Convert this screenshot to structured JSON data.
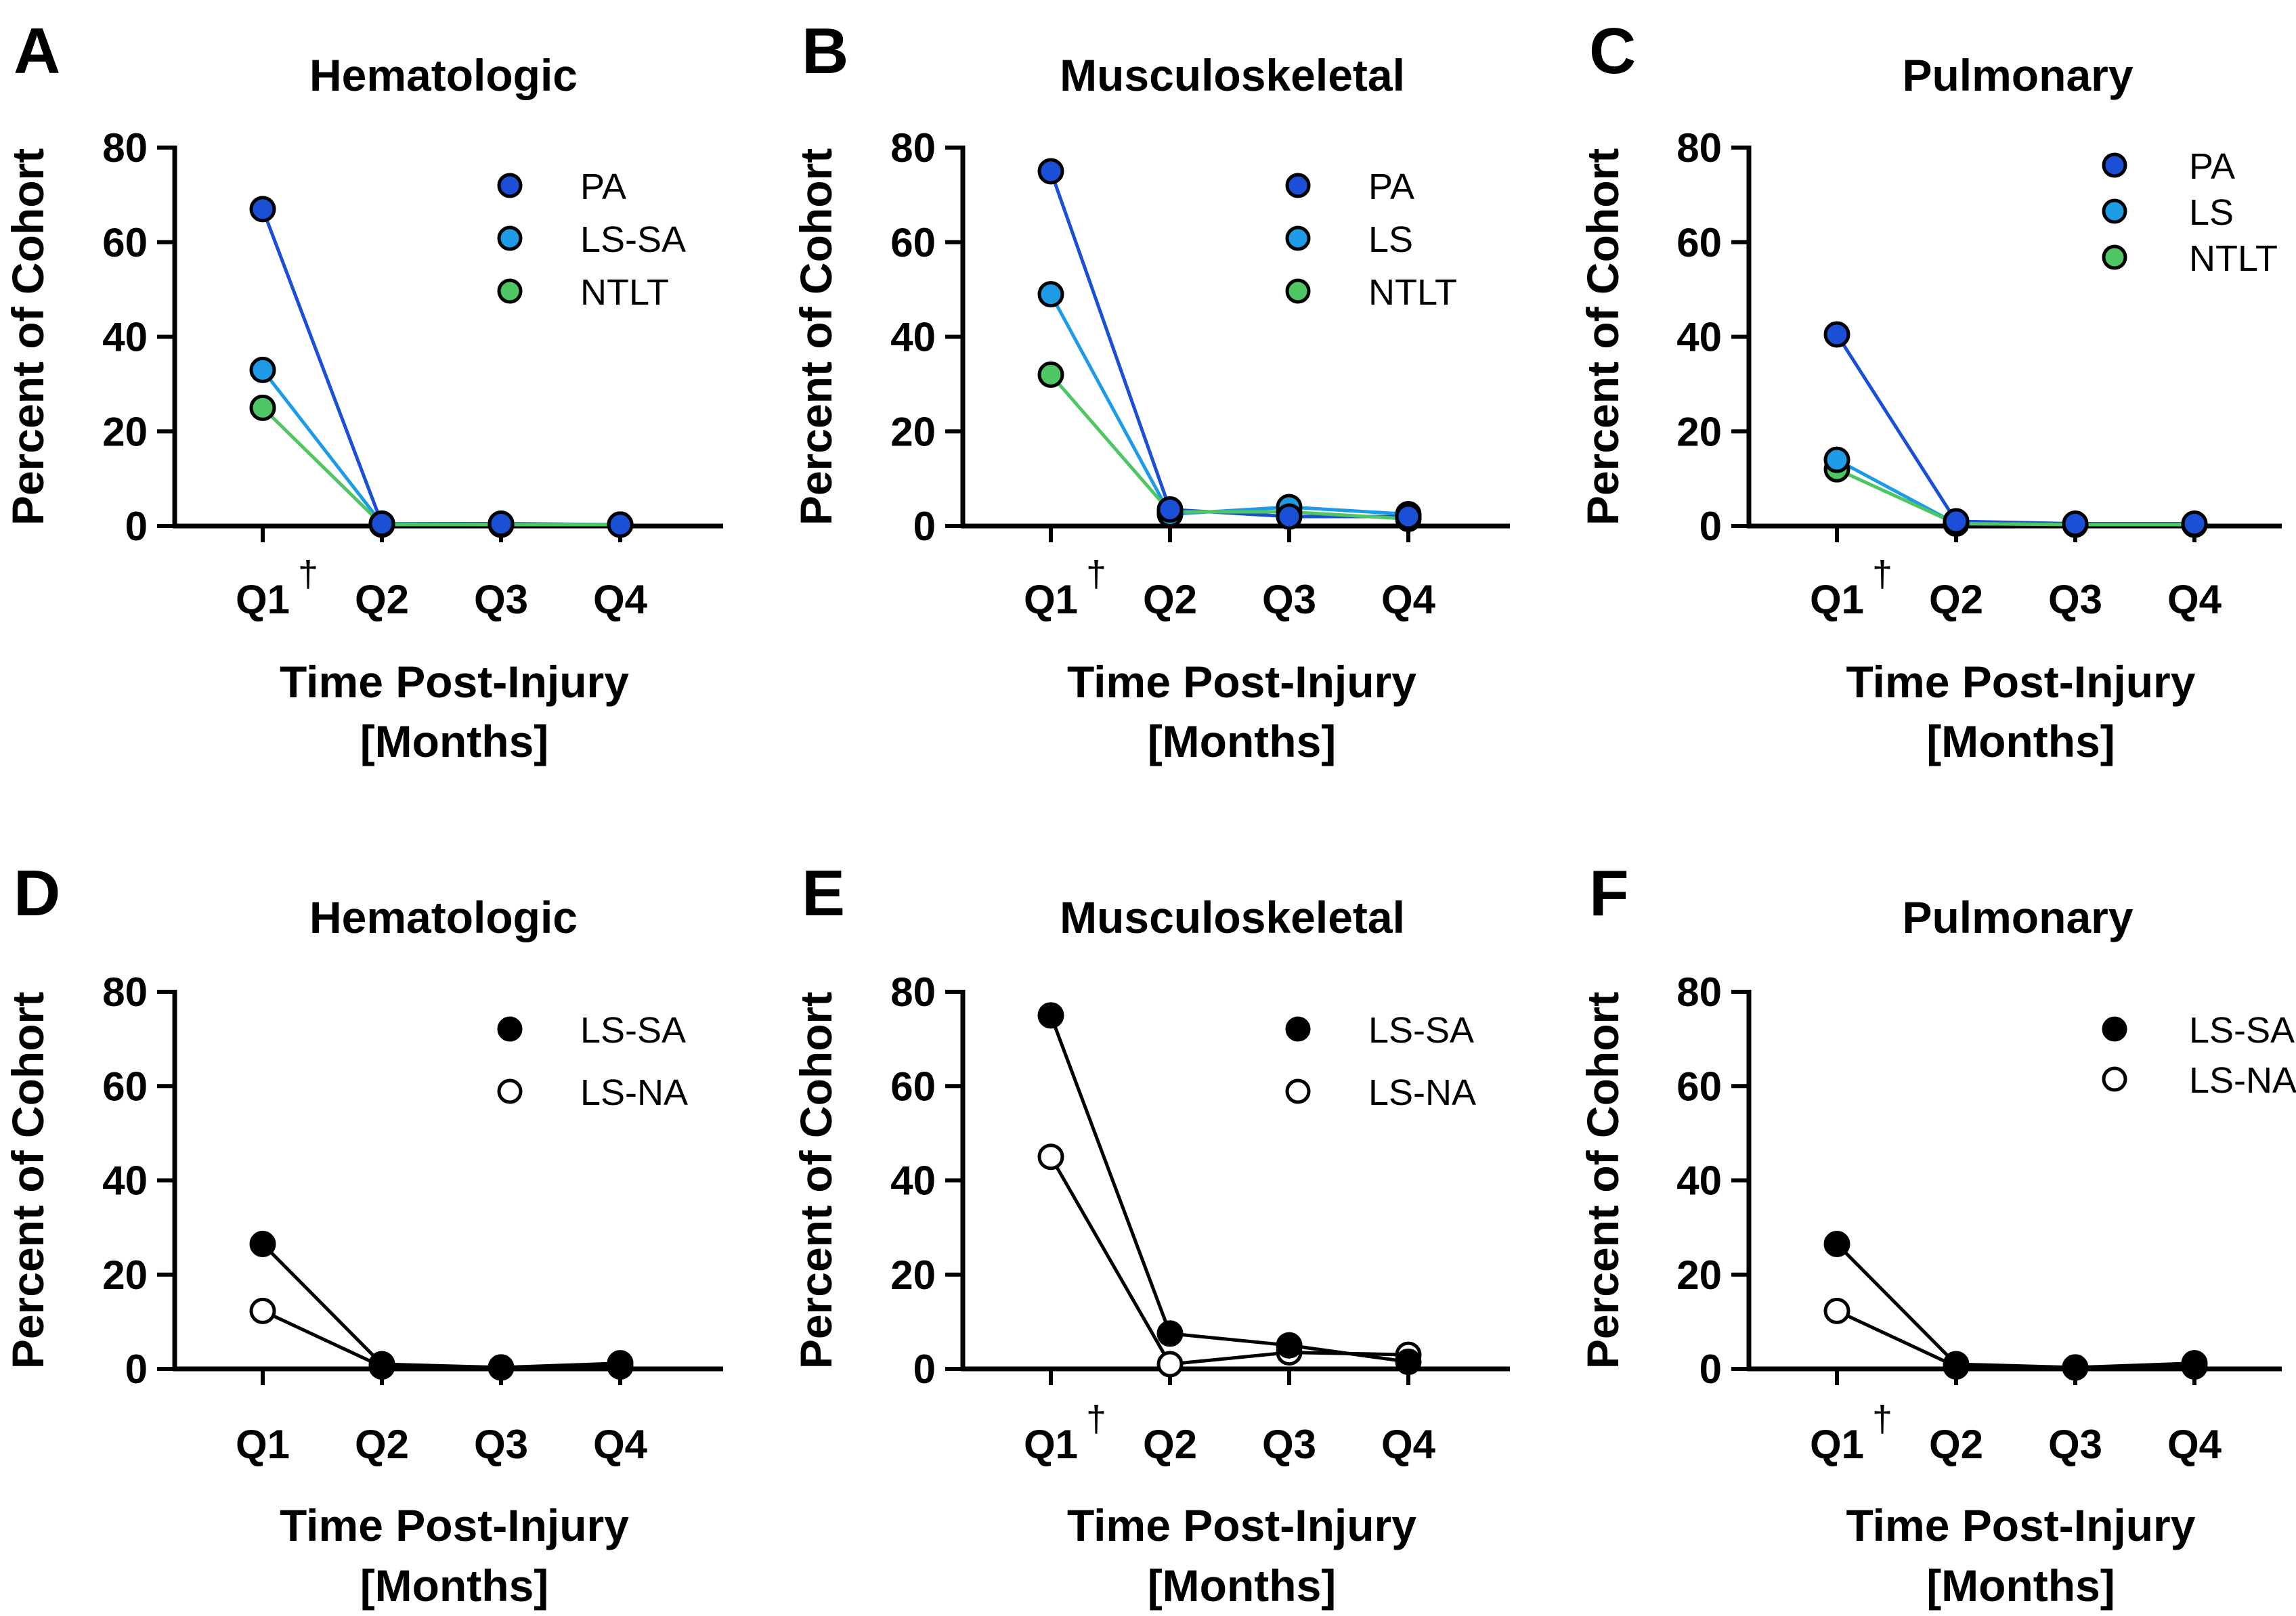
{
  "colors": {
    "PA": "#1a4fd6",
    "LS": "#1e9be6",
    "NTLT": "#4fc664",
    "axis": "#000000",
    "open": "#ffffff"
  },
  "chart_data": [
    {
      "panel": "A",
      "type": "line",
      "title": "Hematologic",
      "ylabel": "Percent of Cohort",
      "xlabel": [
        "Time Post-Injury",
        "[Months]"
      ],
      "categories": [
        "Q1",
        "Q2",
        "Q3",
        "Q4"
      ],
      "dagger": [
        true,
        false,
        false,
        false
      ],
      "ylim": [
        0,
        80
      ],
      "yticks": [
        "0",
        "20",
        "40",
        "60",
        "80"
      ],
      "legend_position": "top-right",
      "series": [
        {
          "name": "PA",
          "color_key": "PA",
          "filled": true,
          "values": [
            67,
            0.5,
            0.5,
            0.3
          ]
        },
        {
          "name": "LS-SA",
          "color_key": "LS",
          "filled": true,
          "values": [
            33,
            0.5,
            0.3,
            0.3
          ]
        },
        {
          "name": "NTLT",
          "color_key": "NTLT",
          "filled": true,
          "values": [
            25,
            0.3,
            0.3,
            0.3
          ]
        }
      ]
    },
    {
      "panel": "B",
      "type": "line",
      "title": "Musculoskeletal",
      "ylabel": "Percent of Cohort",
      "xlabel": [
        "Time Post-Injury",
        "[Months]"
      ],
      "categories": [
        "Q1",
        "Q2",
        "Q3",
        "Q4"
      ],
      "dagger": [
        true,
        false,
        false,
        false
      ],
      "ylim": [
        0,
        80
      ],
      "yticks": [
        "0",
        "20",
        "40",
        "60",
        "80"
      ],
      "legend_position": "top-right",
      "series": [
        {
          "name": "PA",
          "color_key": "PA",
          "filled": true,
          "values": [
            75,
            3.5,
            2,
            2
          ]
        },
        {
          "name": "LS",
          "color_key": "LS",
          "filled": true,
          "values": [
            49,
            2.5,
            4,
            2.5
          ]
        },
        {
          "name": "NTLT",
          "color_key": "NTLT",
          "filled": true,
          "values": [
            32,
            3,
            3,
            1.5
          ]
        }
      ]
    },
    {
      "panel": "C",
      "type": "line",
      "title": "Pulmonary",
      "ylabel": "Percent of Cohort",
      "xlabel": [
        "Time Post-Injury",
        "[Months]"
      ],
      "categories": [
        "Q1",
        "Q2",
        "Q3",
        "Q4"
      ],
      "dagger": [
        true,
        false,
        false,
        false
      ],
      "ylim": [
        0,
        80
      ],
      "yticks": [
        "0",
        "20",
        "40",
        "60",
        "80"
      ],
      "legend_position": "top-right",
      "series": [
        {
          "name": "PA",
          "color_key": "PA",
          "filled": true,
          "values": [
            40.5,
            1,
            0.5,
            0.5
          ]
        },
        {
          "name": "LS",
          "color_key": "LS",
          "filled": true,
          "values": [
            14,
            0.5,
            0.3,
            0.3
          ]
        },
        {
          "name": "NTLT",
          "color_key": "NTLT",
          "filled": true,
          "values": [
            12,
            0.5,
            0.3,
            0.3
          ]
        }
      ]
    },
    {
      "panel": "D",
      "type": "line",
      "title": "Hematologic",
      "ylabel": "Percent of Cohort",
      "xlabel": [
        "Time Post-Injury",
        "[Months]"
      ],
      "categories": [
        "Q1",
        "Q2",
        "Q3",
        "Q4"
      ],
      "dagger": [
        false,
        false,
        false,
        false
      ],
      "ylim": [
        0,
        80
      ],
      "yticks": [
        "0",
        "20",
        "40",
        "60",
        "80"
      ],
      "legend_position": "top-right",
      "series": [
        {
          "name": "LS-SA",
          "color_key": "axis",
          "filled": true,
          "values": [
            26.5,
            1,
            0.3,
            1.2
          ]
        },
        {
          "name": "LS-NA",
          "color_key": "axis",
          "filled": false,
          "values": [
            12.3,
            0.5,
            0.3,
            0.5
          ]
        }
      ]
    },
    {
      "panel": "E",
      "type": "line",
      "title": "Musculoskeletal",
      "ylabel": "Percent of Cohort",
      "xlabel": [
        "Time Post-Injury",
        "[Months]"
      ],
      "categories": [
        "Q1",
        "Q2",
        "Q3",
        "Q4"
      ],
      "dagger": [
        true,
        false,
        false,
        false
      ],
      "ylim": [
        0,
        80
      ],
      "yticks": [
        "0",
        "20",
        "40",
        "60",
        "80"
      ],
      "legend_position": "top-right",
      "series": [
        {
          "name": "LS-SA",
          "color_key": "axis",
          "filled": true,
          "values": [
            75,
            7.5,
            5,
            1.5
          ]
        },
        {
          "name": "LS-NA",
          "color_key": "axis",
          "filled": false,
          "values": [
            45,
            1,
            3.5,
            3
          ]
        }
      ]
    },
    {
      "panel": "F",
      "type": "line",
      "title": "Pulmonary",
      "ylabel": "Percent of Cohort",
      "xlabel": [
        "Time Post-Injury",
        "[Months]"
      ],
      "categories": [
        "Q1",
        "Q2",
        "Q3",
        "Q4"
      ],
      "dagger": [
        true,
        false,
        false,
        false
      ],
      "ylim": [
        0,
        80
      ],
      "yticks": [
        "0",
        "20",
        "40",
        "60",
        "80"
      ],
      "legend_position": "top-right",
      "series": [
        {
          "name": "LS-SA",
          "color_key": "axis",
          "filled": true,
          "values": [
            26.5,
            1,
            0.3,
            1.2
          ]
        },
        {
          "name": "LS-NA",
          "color_key": "axis",
          "filled": false,
          "values": [
            12.3,
            0.5,
            0.3,
            0.5
          ]
        }
      ]
    }
  ]
}
